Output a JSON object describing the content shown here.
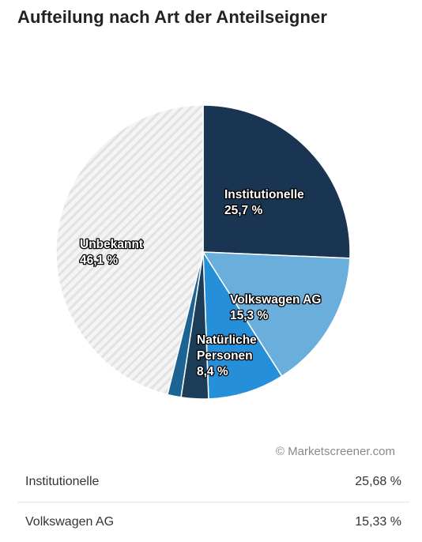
{
  "title": "Aufteilung nach Art der Anteilseigner",
  "credit": "© Marketscreener.com",
  "chart_data": {
    "type": "pie",
    "slices": [
      {
        "label_lines": [
          "Institutionelle",
          "25,7 %"
        ],
        "value": 25.68,
        "color": "#1a3552"
      },
      {
        "label_lines": [
          "Volkswagen AG",
          "15,3 %"
        ],
        "value": 15.33,
        "color": "#6aaedb"
      },
      {
        "label_lines": [
          "Natürliche",
          "Personen",
          "8,4 %"
        ],
        "value": 8.4,
        "color": "#2590d9"
      },
      {
        "label_lines": [],
        "value": 3.0,
        "color": "#1b3d57"
      },
      {
        "label_lines": [],
        "value": 1.5,
        "color": "#1c6494"
      },
      {
        "label_lines": [
          "Unbekannt",
          "46,1 %"
        ],
        "value": 46.1,
        "color": "#f2f2f2",
        "pattern": "hatch"
      }
    ]
  },
  "table": {
    "rows": [
      {
        "label": "Institutionelle",
        "value": "25,68 %"
      },
      {
        "label": "Volkswagen AG",
        "value": "15,33 %"
      }
    ]
  }
}
